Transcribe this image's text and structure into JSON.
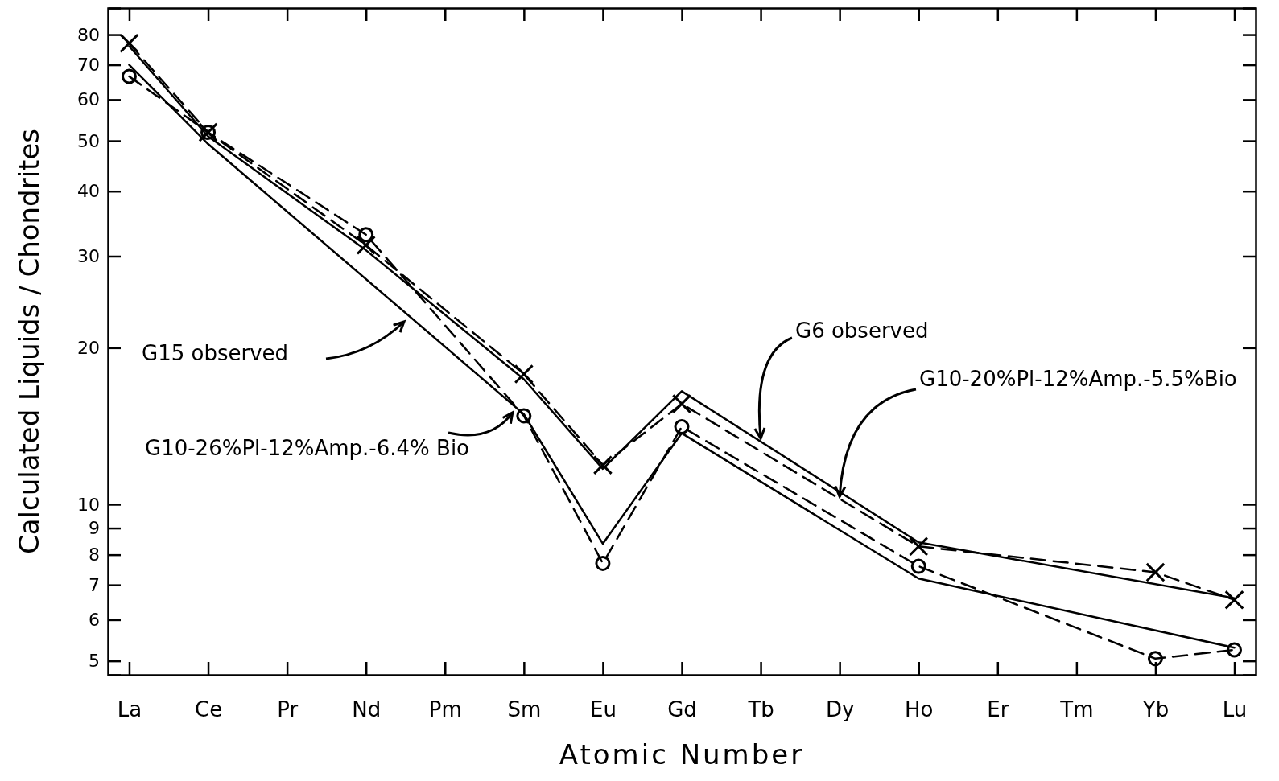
{
  "chart_data": {
    "type": "line",
    "xlabel": "Atomic Number",
    "ylabel": "Calculated Liquids / Chondrites",
    "categories": [
      "La",
      "Ce",
      "Pr",
      "Nd",
      "Pm",
      "Sm",
      "Eu",
      "Gd",
      "Tb",
      "Dy",
      "Ho",
      "Er",
      "Tm",
      "Yb",
      "Lu"
    ],
    "series": [
      {
        "color": "#000000",
        "marker": "none",
        "line_style": "solid",
        "values": [
          70,
          49.3,
          null,
          null,
          null,
          14.9,
          8.4,
          13.7,
          null,
          null,
          7.2,
          null,
          null,
          null,
          5.3
        ]
      },
      {
        "color": "#000000",
        "marker": "none",
        "line_style": "solid",
        "values": [
          76,
          51,
          null,
          30.8,
          null,
          17.4,
          11.7,
          16.5,
          null,
          null,
          8.45,
          null,
          null,
          null,
          6.6
        ]
      },
      {
        "color": "#000000",
        "marker": "circle",
        "line_style": "dashed",
        "values": [
          66.5,
          51.9,
          null,
          33,
          null,
          14.8,
          7.7,
          14.1,
          null,
          null,
          7.6,
          null,
          null,
          5.05,
          5.25
        ]
      },
      {
        "color": "#000000",
        "marker": "cross",
        "line_style": "dashed",
        "values": [
          77,
          51.9,
          null,
          31.5,
          null,
          17.8,
          11.9,
          15.6,
          null,
          null,
          8.3,
          null,
          null,
          7.4,
          6.55
        ]
      }
    ],
    "annotations": [
      "G15 observed",
      {
        "text": "G6 observed",
        "x": "Tb",
        "y": 13.2
      },
      {
        "text": "G10-26%Pl-12%Amp.-6.4% Bio",
        "x": "Sm",
        "y": 14.8
      },
      {
        "text": "G10-20%Pl-12%Amp.-5.5%Bio",
        "x": "Dy",
        "y": 10.2
      }
    ],
    "log": true,
    "ylim": [
      4.7,
      90
    ],
    "yticks": [
      5,
      6,
      7,
      8,
      9,
      10,
      20,
      30,
      40,
      50,
      60,
      70,
      80
    ],
    "grid": false
  }
}
